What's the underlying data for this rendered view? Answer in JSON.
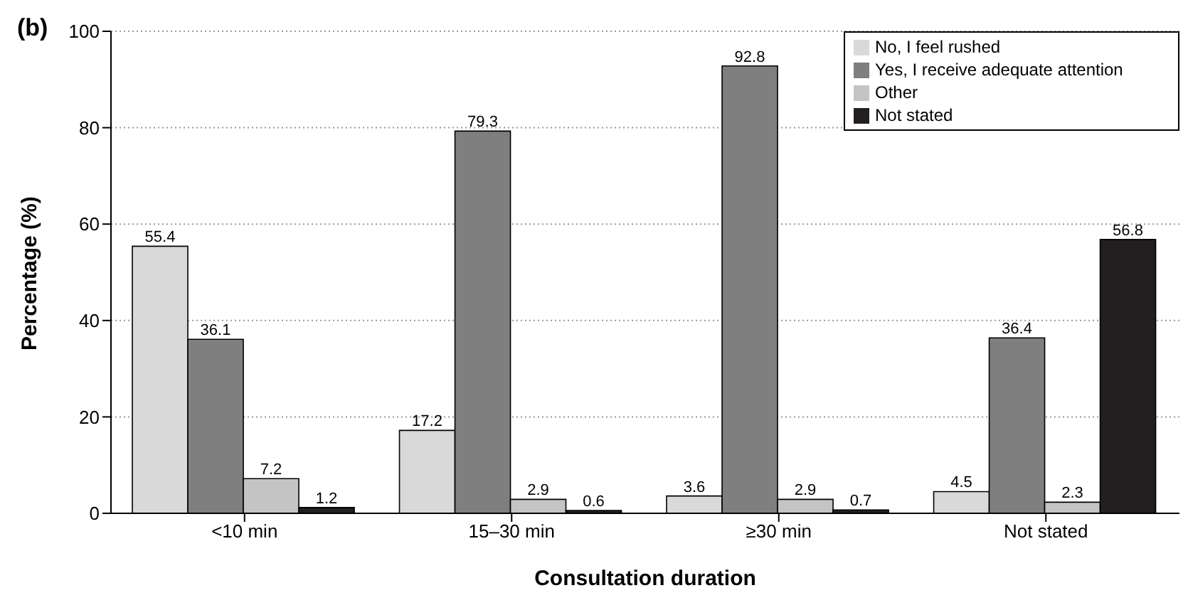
{
  "chart_data": {
    "type": "bar",
    "title": "(b)",
    "xlabel": "Consultation duration",
    "ylabel": "Percentage (%)",
    "categories": [
      "<10 min",
      "15–30 min",
      "≥30 min",
      "Not stated"
    ],
    "series": [
      {
        "name": "No, I feel rushed",
        "color": "#d9d9d9",
        "values": [
          55.4,
          17.2,
          3.6,
          4.5
        ]
      },
      {
        "name": "Yes, I receive adequate attention",
        "color": "#7f7f7f",
        "values": [
          36.1,
          79.3,
          92.8,
          36.4
        ]
      },
      {
        "name": "Other",
        "color": "#c4c4c4",
        "values": [
          7.2,
          2.9,
          2.9,
          2.3
        ]
      },
      {
        "name": "Not stated",
        "color": "#231f20",
        "values": [
          1.2,
          0.6,
          0.7,
          56.8
        ]
      }
    ],
    "ylim": [
      0,
      100
    ],
    "yticks": [
      0,
      20,
      40,
      60,
      80,
      100
    ],
    "grid": "y",
    "legend": "top right",
    "data_labels": true
  }
}
